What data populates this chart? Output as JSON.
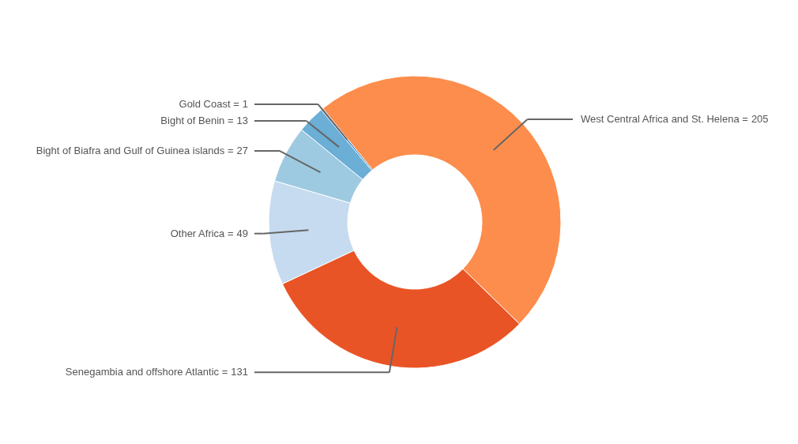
{
  "chart_data": {
    "type": "donut",
    "categories": [
      "West Central Africa and St. Helena =",
      "Senegambia and offshore Atlantic =",
      "Other Africa =",
      "Bight of Biafra and Gulf of Guinea islands =",
      "Bight of Benin =",
      "Gold Coast ="
    ],
    "values": [
      205,
      131,
      49,
      27,
      13,
      1
    ],
    "colors": [
      "#fd8d4c",
      "#e95426",
      "#c6dbef",
      "#9ecae1",
      "#6baed6",
      "#2171b5"
    ],
    "data_labels": true
  }
}
